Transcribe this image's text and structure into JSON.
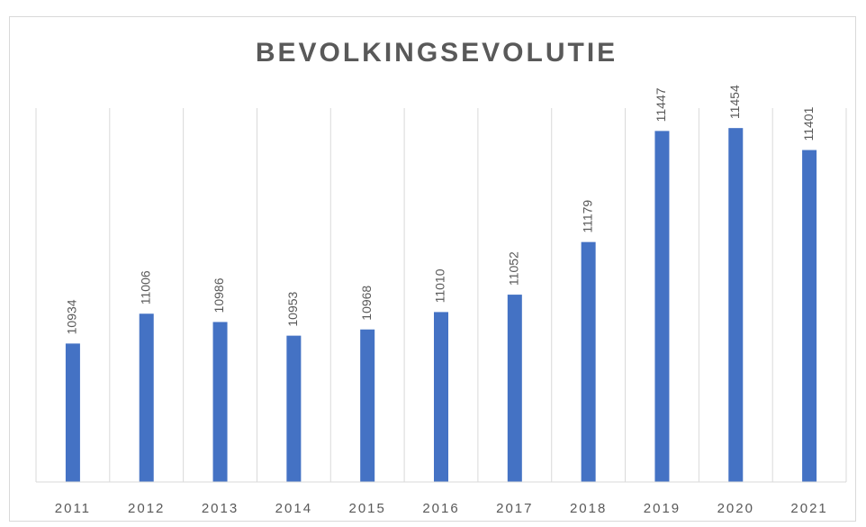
{
  "chart_data": {
    "type": "bar",
    "title": "BEVOLKINGSEVOLUTIE",
    "categories": [
      "2011",
      "2012",
      "2013",
      "2014",
      "2015",
      "2016",
      "2017",
      "2018",
      "2019",
      "2020",
      "2021"
    ],
    "values": [
      10934,
      11006,
      10986,
      10953,
      10968,
      11010,
      11052,
      11179,
      11447,
      11454,
      11401
    ],
    "color": "#4472c4",
    "ylim": [
      10600,
      11600
    ],
    "data_labels": true
  }
}
